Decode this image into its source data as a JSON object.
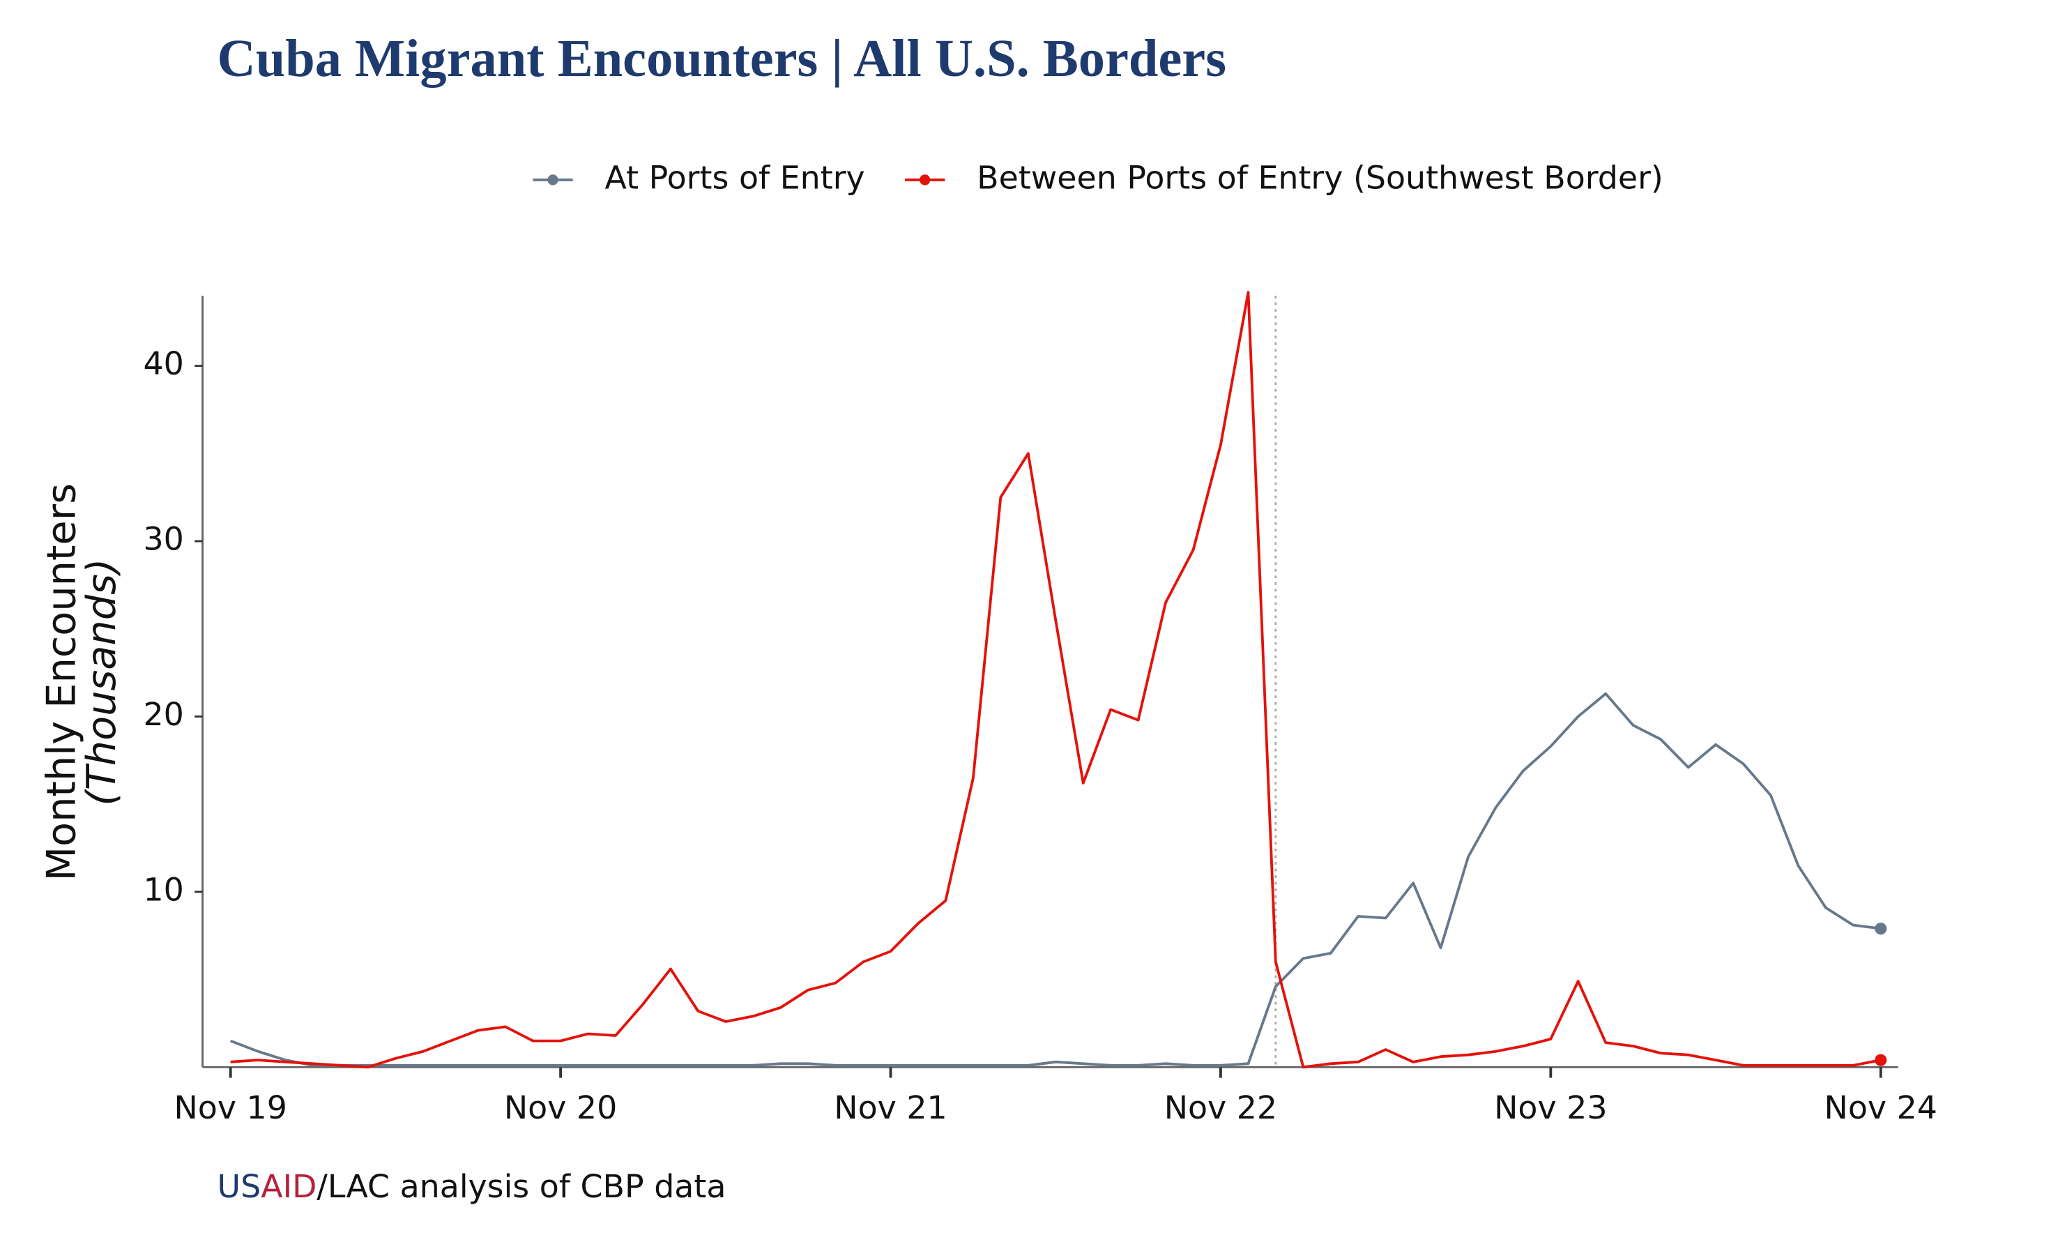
{
  "chart_data": {
    "type": "line",
    "title": "Cuba Migrant Encounters | All U.S. Borders",
    "ylabel": "Monthly Encounters",
    "ylabel_unit": "(Thousands)",
    "source": [
      "US",
      "AID",
      "/LAC analysis of CBP data"
    ],
    "source_colors": [
      "#1f3a6e",
      "#b5213b",
      "#111111"
    ],
    "x": [
      "2019-11",
      "2019-12",
      "2020-01",
      "2020-02",
      "2020-03",
      "2020-04",
      "2020-05",
      "2020-06",
      "2020-07",
      "2020-08",
      "2020-09",
      "2020-10",
      "2020-11",
      "2020-12",
      "2021-01",
      "2021-02",
      "2021-03",
      "2021-04",
      "2021-05",
      "2021-06",
      "2021-07",
      "2021-08",
      "2021-09",
      "2021-10",
      "2021-11",
      "2021-12",
      "2022-01",
      "2022-02",
      "2022-03",
      "2022-04",
      "2022-05",
      "2022-06",
      "2022-07",
      "2022-08",
      "2022-09",
      "2022-10",
      "2022-11",
      "2022-12",
      "2023-01",
      "2023-02",
      "2023-03",
      "2023-04",
      "2023-05",
      "2023-06",
      "2023-07",
      "2023-08",
      "2023-09",
      "2023-10",
      "2023-11",
      "2023-12",
      "2024-01",
      "2024-02",
      "2024-03",
      "2024-04",
      "2024-05",
      "2024-06",
      "2024-07",
      "2024-08",
      "2024-09",
      "2024-10",
      "2024-11"
    ],
    "xticks": [
      {
        "value": "2019-11",
        "label": "Nov 19"
      },
      {
        "value": "2020-11",
        "label": "Nov 20"
      },
      {
        "value": "2021-11",
        "label": "Nov 21"
      },
      {
        "value": "2022-11",
        "label": "Nov 22"
      },
      {
        "value": "2023-11",
        "label": "Nov 23"
      },
      {
        "value": "2024-11",
        "label": "Nov 24"
      }
    ],
    "ylim": [
      0,
      44
    ],
    "yticks": [
      10,
      20,
      30,
      40
    ],
    "vline_x": "2023-01",
    "series": [
      {
        "name": "At Ports of Entry",
        "color": "#66798c",
        "values": [
          1.5,
          0.9,
          0.4,
          0.1,
          0.1,
          0.1,
          0.1,
          0.1,
          0.1,
          0.1,
          0.1,
          0.1,
          0.1,
          0.1,
          0.1,
          0.1,
          0.1,
          0.1,
          0.1,
          0.1,
          0.2,
          0.2,
          0.1,
          0.1,
          0.1,
          0.1,
          0.1,
          0.1,
          0.1,
          0.1,
          0.3,
          0.2,
          0.1,
          0.1,
          0.2,
          0.1,
          0.1,
          0.2,
          4.6,
          6.2,
          6.5,
          8.6,
          8.5,
          10.5,
          6.8,
          12.0,
          14.8,
          16.9,
          18.3,
          20.0,
          21.3,
          19.5,
          18.7,
          17.1,
          18.4,
          17.3,
          15.5,
          11.5,
          9.1,
          8.1,
          7.9
        ]
      },
      {
        "name": "Between Ports of Entry (Southwest Border)",
        "color": "#e3120b",
        "values": [
          0.3,
          0.4,
          0.3,
          0.2,
          0.1,
          0.0,
          0.5,
          0.9,
          1.5,
          2.1,
          2.3,
          1.5,
          1.5,
          1.9,
          1.8,
          3.6,
          5.6,
          3.2,
          2.6,
          2.9,
          3.4,
          4.4,
          4.8,
          6.0,
          6.6,
          8.2,
          9.5,
          16.5,
          32.5,
          35.0,
          25.5,
          16.2,
          20.4,
          19.8,
          26.5,
          29.5,
          35.5,
          44.2,
          6.0,
          0.0,
          0.2,
          0.3,
          1.0,
          0.3,
          0.6,
          0.7,
          0.9,
          1.2,
          1.6,
          4.9,
          1.4,
          1.2,
          0.8,
          0.7,
          0.4,
          0.1,
          0.1,
          0.1,
          0.1,
          0.1,
          0.4
        ]
      }
    ]
  }
}
